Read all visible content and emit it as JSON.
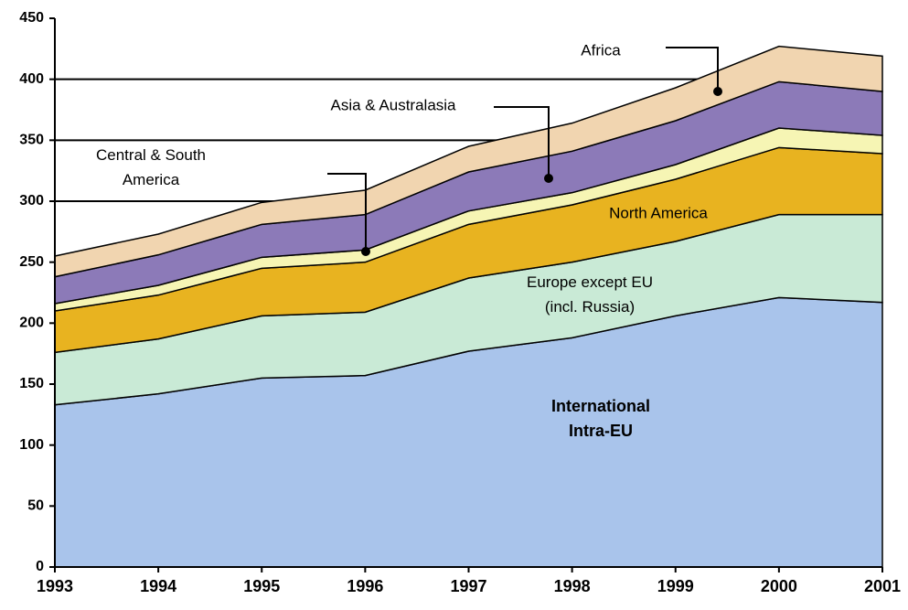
{
  "chart_data": {
    "type": "stacked_area",
    "x": [
      1993,
      1994,
      1995,
      1996,
      1997,
      1998,
      1999,
      2000,
      2001
    ],
    "xlim": [
      1993,
      2001
    ],
    "xticks": [
      1993,
      1994,
      1995,
      1996,
      1997,
      1998,
      1999,
      2000,
      2001
    ],
    "ylim": [
      0,
      450
    ],
    "yticks": [
      0,
      50,
      100,
      150,
      200,
      250,
      300,
      350,
      400,
      450
    ],
    "grid": true,
    "series": [
      {
        "name": "International\nIntra-EU",
        "color": "#a9c4eb",
        "values": [
          133,
          142,
          155,
          157,
          177,
          188,
          206,
          221,
          217
        ]
      },
      {
        "name": "Europe except EU\n(incl. Russia)",
        "color": "#c9ead6",
        "values": [
          43,
          45,
          51,
          52,
          60,
          62,
          61,
          68,
          72
        ]
      },
      {
        "name": "North America",
        "color": "#e8b320",
        "values": [
          34,
          36,
          39,
          41,
          44,
          47,
          51,
          55,
          50
        ]
      },
      {
        "name": "Central & South\nAmerica",
        "color": "#f6f5b4",
        "values": [
          6,
          8,
          9,
          10,
          11,
          10,
          12,
          16,
          15
        ]
      },
      {
        "name": "Asia & Australasia",
        "color": "#8c7ab8",
        "values": [
          22,
          25,
          27,
          29,
          32,
          34,
          36,
          38,
          36
        ]
      },
      {
        "name": "Africa",
        "color": "#f1d5b0",
        "values": [
          17,
          17,
          18,
          20,
          21,
          23,
          27,
          29,
          29
        ]
      }
    ]
  }
}
